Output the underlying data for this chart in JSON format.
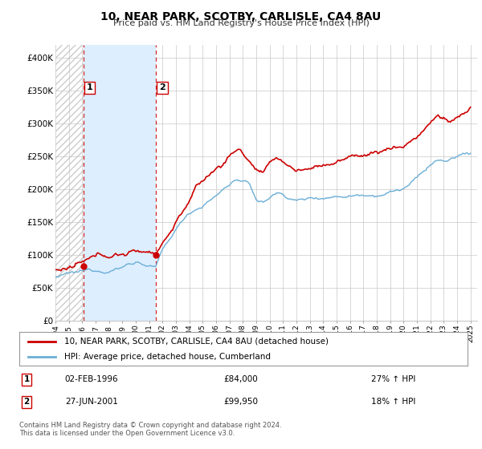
{
  "title": "10, NEAR PARK, SCOTBY, CARLISLE, CA4 8AU",
  "subtitle": "Price paid vs. HM Land Registry's House Price Index (HPI)",
  "sale1_date": "02-FEB-1996",
  "sale1_price": 84000,
  "sale1_year": 1996.083,
  "sale1_hpi_pct": "27% ↑ HPI",
  "sale2_date": "27-JUN-2001",
  "sale2_price": 99950,
  "sale2_year": 2001.5,
  "sale2_hpi_pct": "18% ↑ HPI",
  "legend_line1": "10, NEAR PARK, SCOTBY, CARLISLE, CA4 8AU (detached house)",
  "legend_line2": "HPI: Average price, detached house, Cumberland",
  "footer1": "Contains HM Land Registry data © Crown copyright and database right 2024.",
  "footer2": "This data is licensed under the Open Government Licence v3.0.",
  "hpi_color": "#6baed6",
  "price_color": "#cc0000",
  "shade_color": "#ddeeff",
  "hatch_color": "#cccccc",
  "grid_color": "#c8c8c8",
  "background_color": "#ffffff",
  "ylim": [
    0,
    420000
  ],
  "yticks": [
    0,
    50000,
    100000,
    150000,
    200000,
    250000,
    300000,
    350000,
    400000
  ],
  "ytick_labels": [
    "£0",
    "£50K",
    "£100K",
    "£150K",
    "£200K",
    "£250K",
    "£300K",
    "£350K",
    "£400K"
  ],
  "xmin": 1994.0,
  "xmax": 2025.5
}
